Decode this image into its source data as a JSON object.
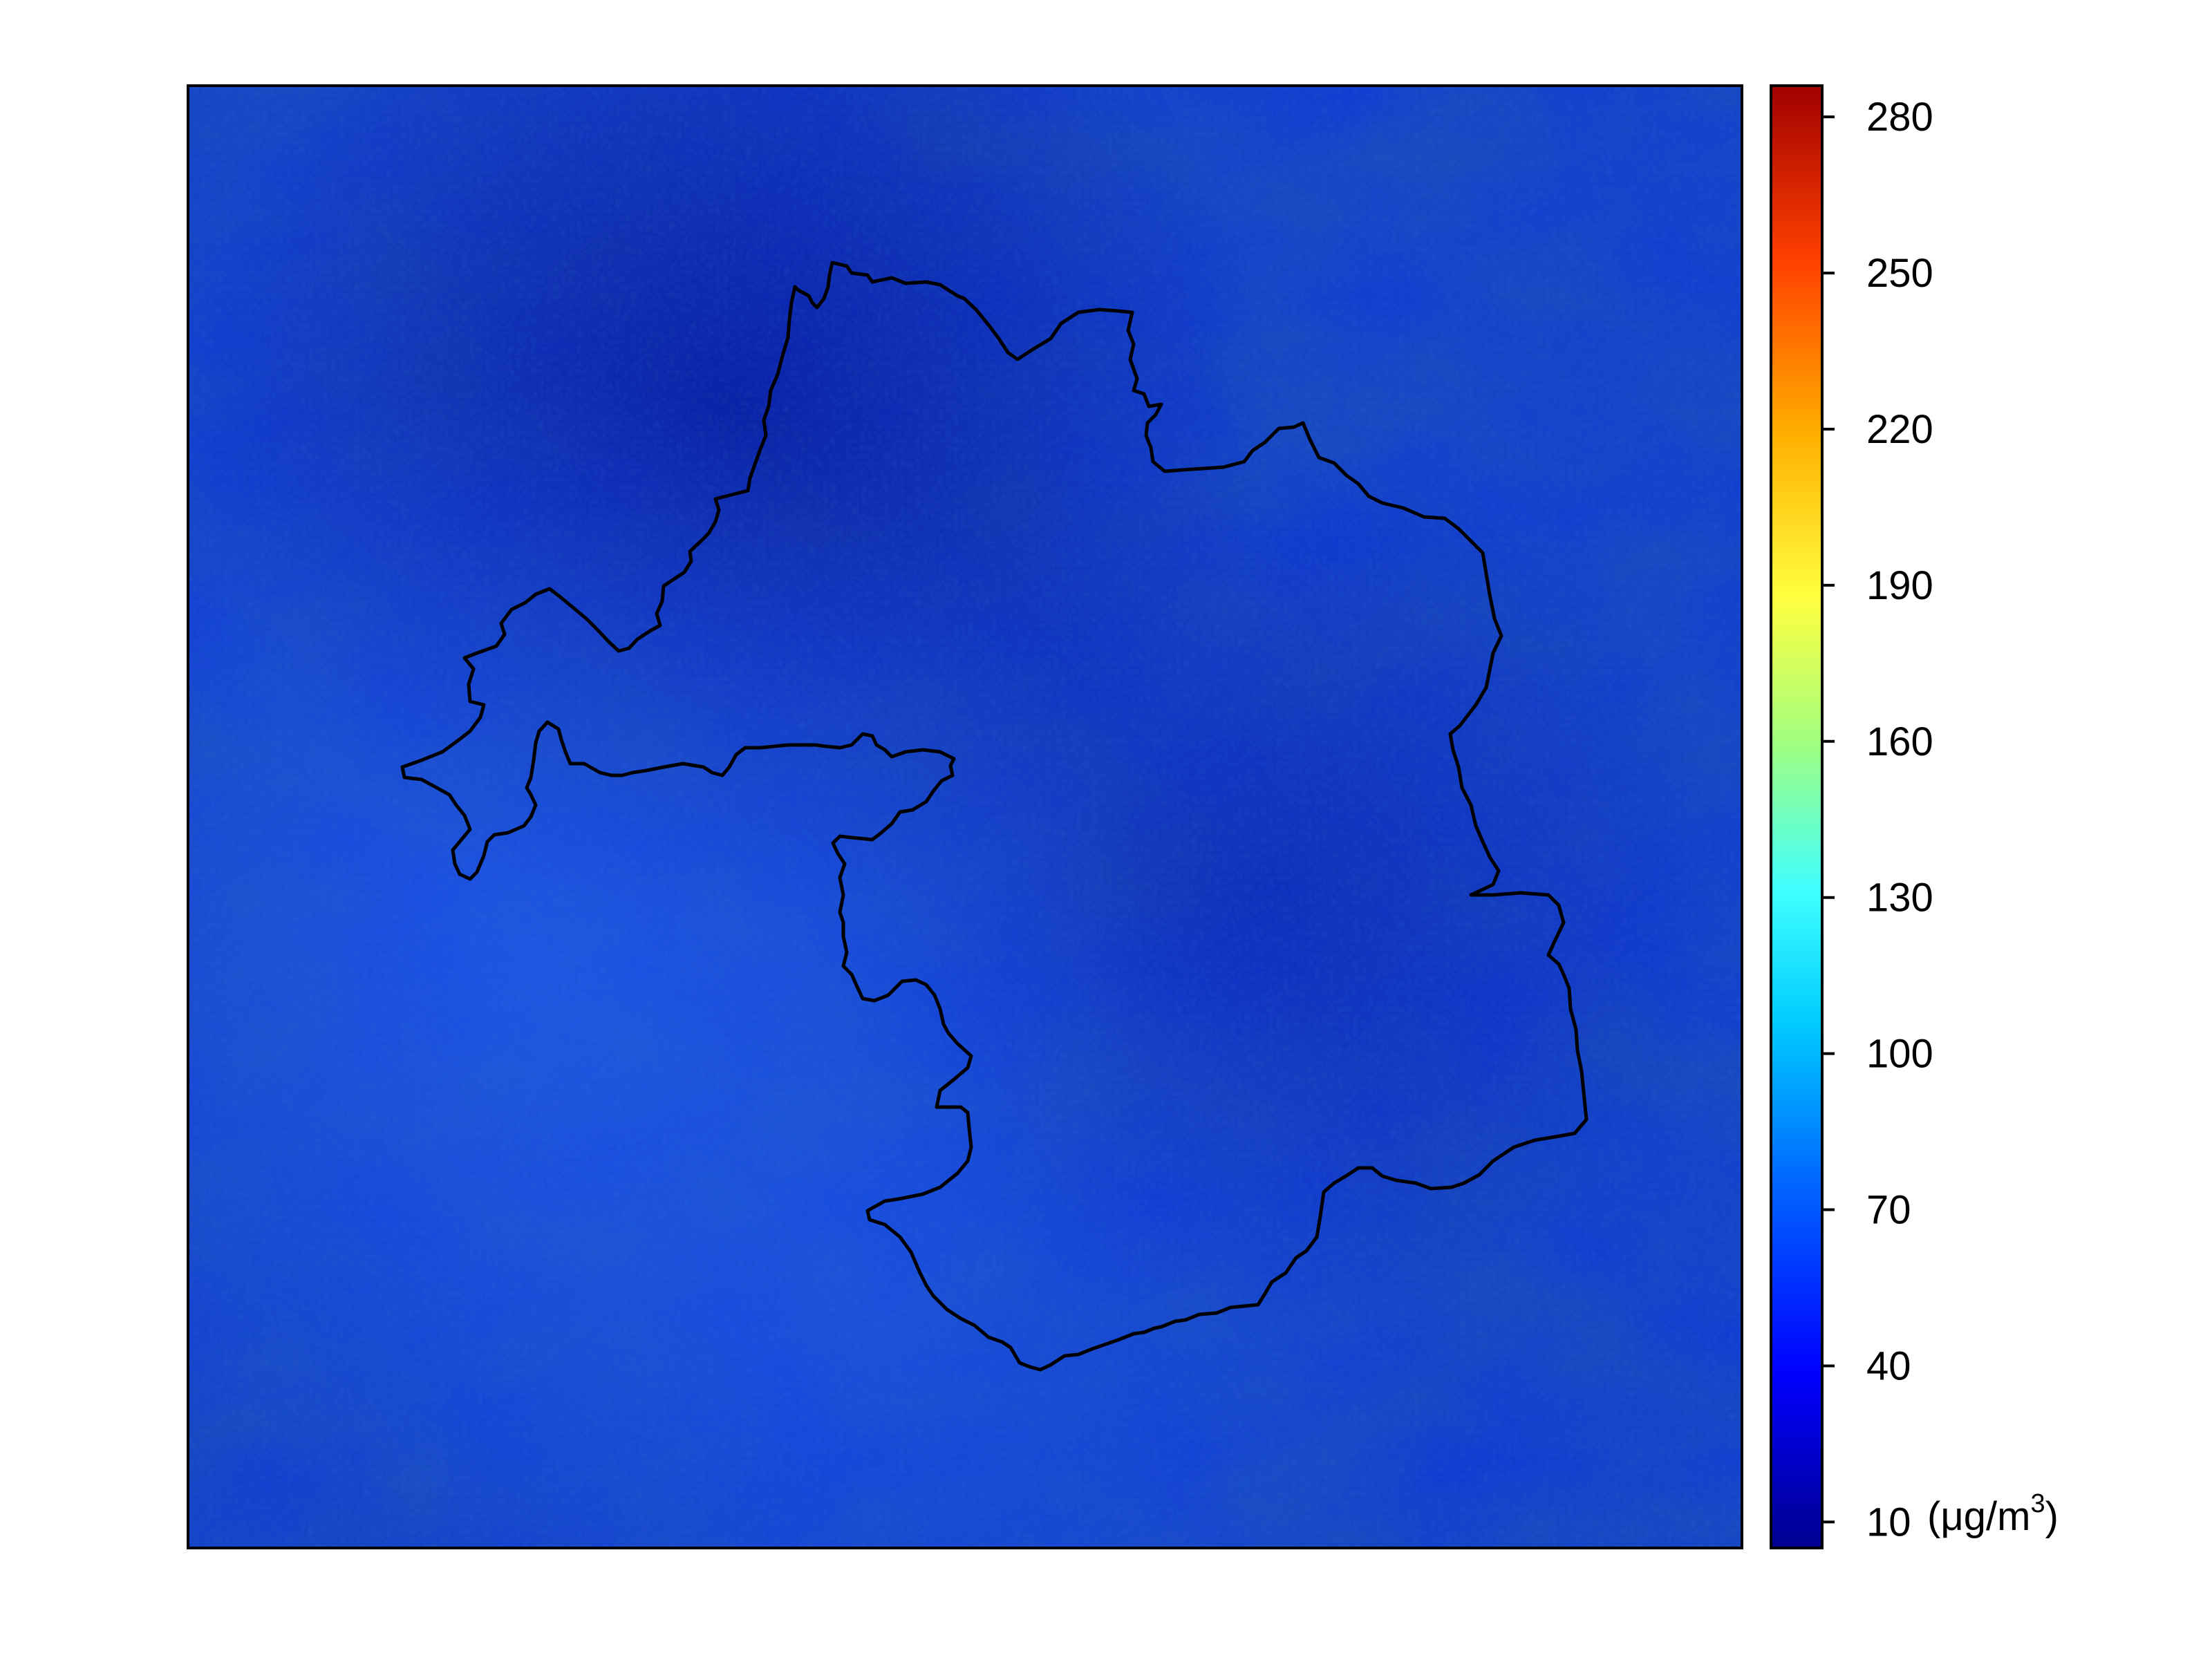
{
  "map": {
    "field": "PM concentration raster",
    "boundary_visible": true
  },
  "colorbar": {
    "ticks": [
      "10",
      "40",
      "70",
      "100",
      "130",
      "160",
      "190",
      "220",
      "250",
      "280"
    ],
    "unit_open": "(",
    "unit_mu": "μ",
    "unit_text": "g/m",
    "unit_sup": "3",
    "unit_close": ")",
    "range": [
      5,
      286
    ],
    "colors": [
      "#00008f",
      "#0000ff",
      "#0080ff",
      "#00ffff",
      "#80ff80",
      "#ffff00",
      "#ff8000",
      "#ff0000",
      "#800000"
    ]
  },
  "colors": {
    "frame": "#000000",
    "boundary": "#000000",
    "field_base": "#0f3ad6",
    "field_dark": "#0a24b8",
    "field_light": "#1a55f0"
  }
}
